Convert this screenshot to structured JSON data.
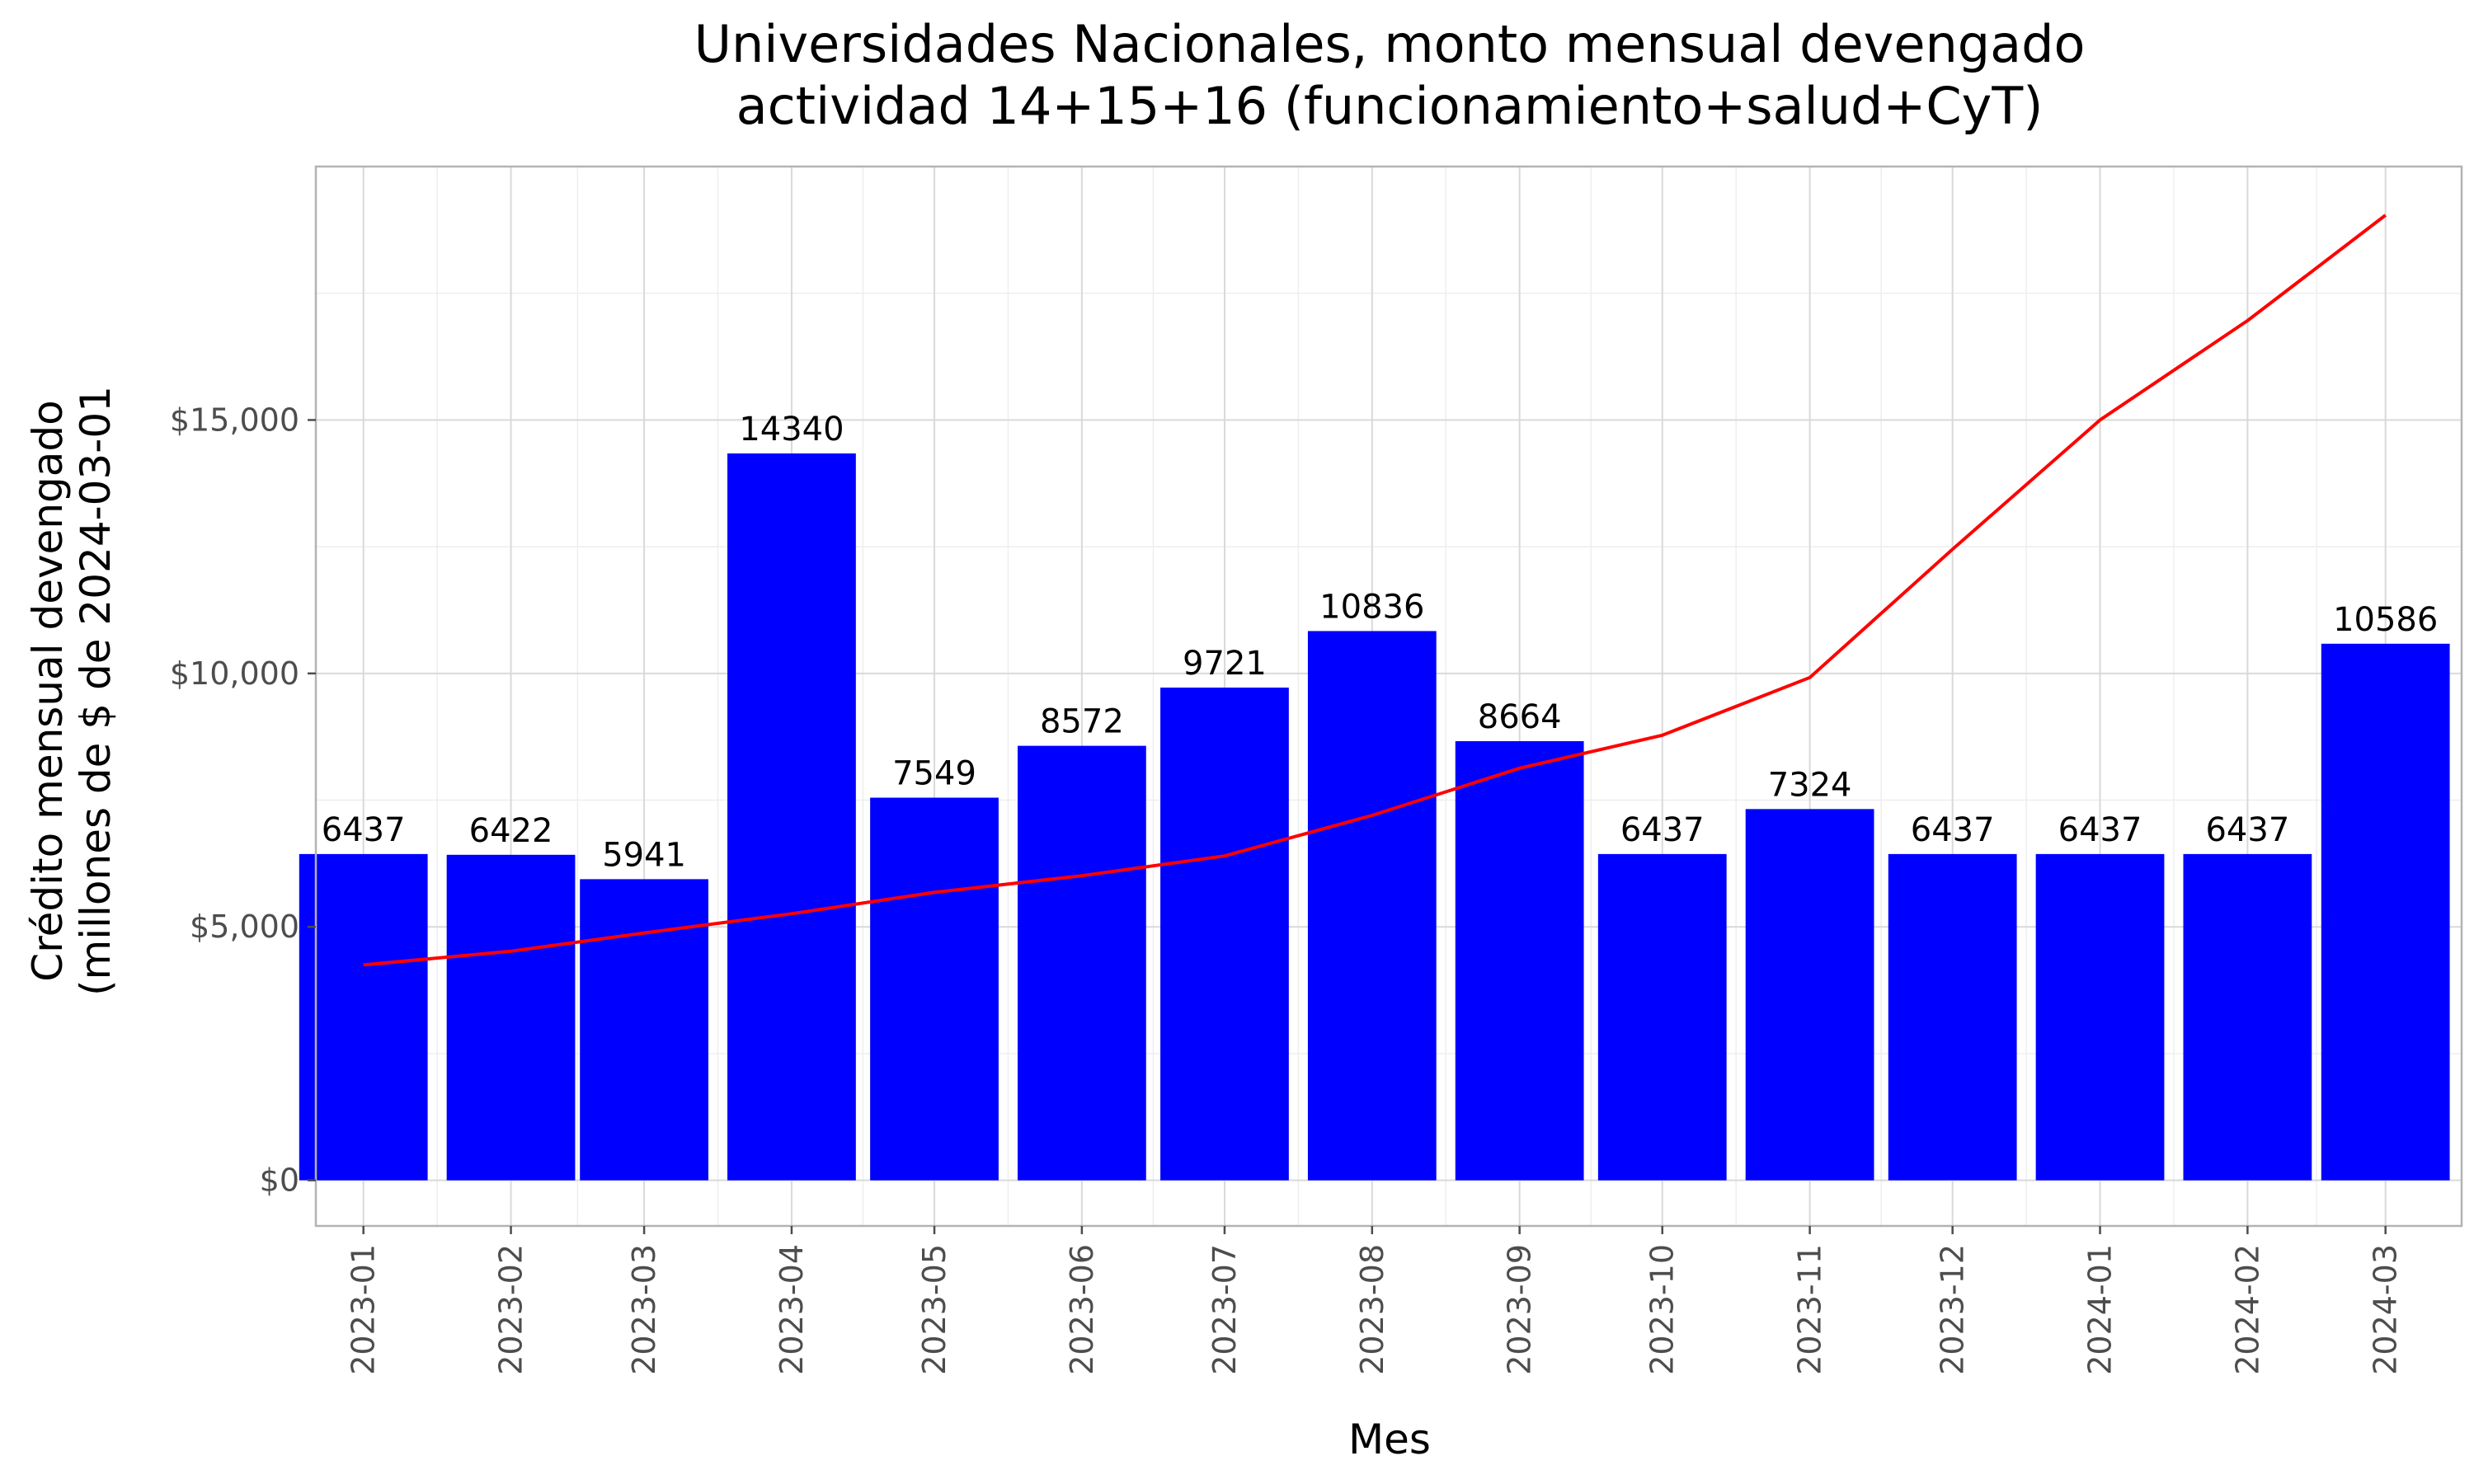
{
  "chart_data": {
    "type": "bar",
    "title": [
      "Universidades Nacionales, monto mensual devengado",
      "actividad 14+15+16 (funcionamiento+salud+CyT)"
    ],
    "xlabel": "Mes",
    "ylabel": [
      "Crédito mensual devengado",
      "(millones de $ de 2024-03-01"
    ],
    "categories": [
      "2023-01",
      "2023-02",
      "2023-03",
      "2023-04",
      "2023-05",
      "2023-06",
      "2023-07",
      "2023-08",
      "2023-09",
      "2023-10",
      "2023-11",
      "2023-12",
      "2024-01",
      "2024-02",
      "2024-03"
    ],
    "x_dates": [
      "2023-01-01",
      "2023-02-01",
      "2023-03-01",
      "2023-04-01",
      "2023-05-01",
      "2023-06-01",
      "2023-07-01",
      "2023-08-01",
      "2023-09-01",
      "2023-10-01",
      "2023-11-01",
      "2023-12-01",
      "2024-01-01",
      "2024-02-01",
      "2024-03-01"
    ],
    "series": [
      {
        "type": "bar",
        "color": "#0000ff",
        "values": [
          6437,
          6422,
          5941,
          14340,
          7549,
          8572,
          9721,
          10836,
          8664,
          6437,
          7324,
          6437,
          6437,
          6437,
          10586
        ],
        "labels": [
          "6437",
          "6422",
          "5941",
          "14340",
          "7549",
          "8572",
          "9721",
          "10836",
          "8664",
          "6437",
          "7324",
          "6437",
          "6437",
          "6437",
          "10586"
        ]
      },
      {
        "type": "line",
        "color": "#ff0000",
        "values": [
          4250,
          4520,
          4880,
          5260,
          5680,
          6010,
          6400,
          7200,
          8130,
          8780,
          9920,
          12450,
          15000,
          16960,
          19040
        ]
      }
    ],
    "yticks": [
      0,
      5000,
      10000,
      15000
    ],
    "ytick_labels": [
      "$0",
      "$5,000",
      "$10,000",
      "$15,000"
    ],
    "ylim": [
      -900,
      20000
    ],
    "xlim": [
      "2022-12-22",
      "2024-03-17"
    ],
    "grid": true,
    "legend": "none"
  }
}
